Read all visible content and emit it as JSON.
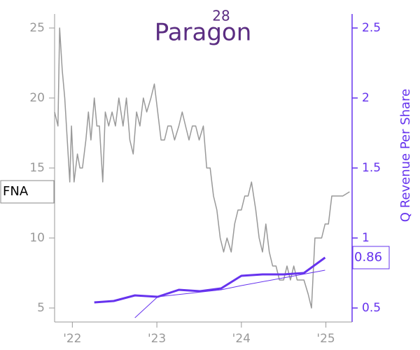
{
  "chart_data": {
    "type": "line",
    "logo": "Paragon",
    "logo_mark": "28",
    "ticker": "FNA",
    "y2label": "Q Revenue Per Share",
    "xlim": [
      2021.79,
      2025.31
    ],
    "xticks": [
      {
        "value": 2022,
        "label": "'22"
      },
      {
        "value": 2023,
        "label": "'23"
      },
      {
        "value": 2024,
        "label": "'24"
      },
      {
        "value": 2025,
        "label": "'25"
      }
    ],
    "ylim": [
      4,
      26
    ],
    "yticks": [
      5,
      10,
      15,
      20,
      25
    ],
    "y2lim": [
      0.4,
      2.6
    ],
    "y2ticks": [
      0.5,
      1.0,
      1.5,
      2.0,
      2.5
    ],
    "y2color": "#6633ee",
    "series": [
      {
        "color": "#999999",
        "line_width": 1.5,
        "x": [
          2021.79,
          2021.83,
          2021.85,
          2021.88,
          2021.91,
          2021.94,
          2021.97,
          2021.99,
          2022.02,
          2022.06,
          2022.09,
          2022.12,
          2022.16,
          2022.19,
          2022.22,
          2022.26,
          2022.29,
          2022.32,
          2022.36,
          2022.39,
          2022.43,
          2022.47,
          2022.51,
          2022.55,
          2022.6,
          2022.64,
          2022.68,
          2022.72,
          2022.76,
          2022.8,
          2022.84,
          2022.88,
          2022.93,
          2022.97,
          2023.01,
          2023.05,
          2023.09,
          2023.13,
          2023.17,
          2023.21,
          2023.26,
          2023.3,
          2023.34,
          2023.38,
          2023.42,
          2023.46,
          2023.5,
          2023.55,
          2023.59,
          2023.63,
          2023.67,
          2023.71,
          2023.75,
          2023.79,
          2023.83,
          2023.88,
          2023.92,
          2023.96,
          2024.0,
          2024.04,
          2024.08,
          2024.12,
          2024.17,
          2024.21,
          2024.25,
          2024.29,
          2024.33,
          2024.37,
          2024.41,
          2024.45,
          2024.5,
          2024.54,
          2024.58,
          2024.62,
          2024.66,
          2024.7,
          2024.74,
          2024.79,
          2024.83,
          2024.87,
          2024.91,
          2024.95,
          2024.99,
          2025.03,
          2025.07,
          2025.12,
          2025.2,
          2025.28
        ],
        "values": [
          19,
          18,
          25,
          22,
          20,
          17,
          14,
          18,
          14,
          16,
          15,
          15,
          17,
          19,
          17,
          20,
          18,
          18,
          14,
          19,
          18,
          19,
          18,
          20,
          18,
          20,
          17,
          16,
          19,
          18,
          20,
          19,
          20,
          21,
          19,
          17,
          17,
          18,
          18,
          17,
          18,
          19,
          18,
          17,
          18,
          18,
          17,
          18,
          15,
          15,
          13,
          12,
          10,
          9,
          10,
          9,
          11,
          12,
          12,
          13,
          13,
          14,
          12,
          10,
          9,
          11,
          9,
          8,
          8,
          7,
          7,
          8,
          7,
          8,
          7,
          7,
          7,
          6,
          5,
          10,
          10,
          10,
          11,
          11,
          13,
          13,
          13,
          13.3
        ]
      },
      {
        "color": "#6633ee",
        "axis": "y2",
        "line_width": 3,
        "x": [
          2022.26,
          2022.49,
          2022.74,
          2023.01,
          2023.26,
          2023.51,
          2023.76,
          2024.0,
          2024.25,
          2024.5,
          2024.74,
          2024.99
        ],
        "values": [
          0.54,
          0.55,
          0.59,
          0.58,
          0.63,
          0.62,
          0.64,
          0.73,
          0.74,
          0.74,
          0.75,
          0.86
        ]
      },
      {
        "color": "#6633ee",
        "axis": "y2",
        "line_width": 1,
        "x": [
          2022.74,
          2023.01,
          2023.76,
          2024.0,
          2024.99
        ],
        "values": [
          0.43,
          0.58,
          0.63,
          0.66,
          0.77
        ]
      }
    ]
  }
}
